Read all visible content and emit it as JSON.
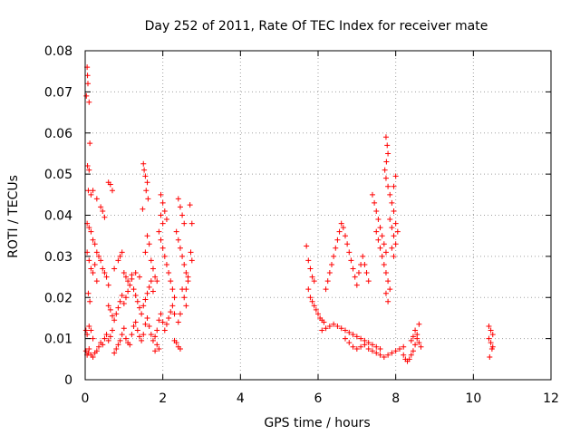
{
  "chart_data": {
    "type": "scatter",
    "title": "Day 252 of 2011, Rate Of TEC Index for receiver mate",
    "xlabel": "GPS time / hours",
    "ylabel": "ROTI / TECUs",
    "xlim": [
      0,
      12
    ],
    "ylim": [
      0,
      0.08
    ],
    "xticks": [
      0,
      2,
      4,
      6,
      8,
      10,
      12
    ],
    "yticks": [
      0,
      0.01,
      0.02,
      0.03,
      0.04,
      0.05,
      0.06,
      0.07,
      0.08
    ],
    "xtick_labels": [
      "0",
      "2",
      "4",
      "6",
      "8",
      "10",
      "12"
    ],
    "ytick_labels": [
      "0",
      "0.01",
      "0.02",
      "0.03",
      "0.04",
      "0.05",
      "0.06",
      "0.07",
      "0.08"
    ],
    "grid": true,
    "marker": "+",
    "color": "#ff0000",
    "points": [
      [
        0.03,
        0.069
      ],
      [
        0.05,
        0.076
      ],
      [
        0.06,
        0.074
      ],
      [
        0.07,
        0.072
      ],
      [
        0.1,
        0.0675
      ],
      [
        0.12,
        0.0575
      ],
      [
        0.06,
        0.052
      ],
      [
        0.1,
        0.051
      ],
      [
        0.08,
        0.046
      ],
      [
        0.15,
        0.045
      ],
      [
        0.2,
        0.046
      ],
      [
        0.3,
        0.044
      ],
      [
        0.4,
        0.042
      ],
      [
        0.45,
        0.041
      ],
      [
        0.5,
        0.0395
      ],
      [
        0.05,
        0.038
      ],
      [
        0.1,
        0.037
      ],
      [
        0.15,
        0.036
      ],
      [
        0.2,
        0.034
      ],
      [
        0.25,
        0.033
      ],
      [
        0.3,
        0.031
      ],
      [
        0.35,
        0.03
      ],
      [
        0.4,
        0.029
      ],
      [
        0.45,
        0.027
      ],
      [
        0.5,
        0.026
      ],
      [
        0.55,
        0.025
      ],
      [
        0.6,
        0.023
      ],
      [
        0.05,
        0.031
      ],
      [
        0.1,
        0.029
      ],
      [
        0.15,
        0.027
      ],
      [
        0.2,
        0.026
      ],
      [
        0.25,
        0.028
      ],
      [
        0.3,
        0.024
      ],
      [
        0.08,
        0.021
      ],
      [
        0.12,
        0.019
      ],
      [
        0.02,
        0.012
      ],
      [
        0.05,
        0.011
      ],
      [
        0.1,
        0.013
      ],
      [
        0.15,
        0.012
      ],
      [
        0.2,
        0.01
      ],
      [
        0.02,
        0.007
      ],
      [
        0.05,
        0.006
      ],
      [
        0.08,
        0.0065
      ],
      [
        0.1,
        0.0075
      ],
      [
        0.15,
        0.006
      ],
      [
        0.2,
        0.0055
      ],
      [
        0.25,
        0.0065
      ],
      [
        0.3,
        0.007
      ],
      [
        0.35,
        0.008
      ],
      [
        0.4,
        0.009
      ],
      [
        0.45,
        0.0085
      ],
      [
        0.5,
        0.01
      ],
      [
        0.55,
        0.011
      ],
      [
        0.6,
        0.0095
      ],
      [
        0.65,
        0.0105
      ],
      [
        0.7,
        0.012
      ],
      [
        0.75,
        0.0065
      ],
      [
        0.8,
        0.0075
      ],
      [
        0.85,
        0.0085
      ],
      [
        0.9,
        0.0095
      ],
      [
        0.95,
        0.011
      ],
      [
        1.0,
        0.0125
      ],
      [
        1.05,
        0.01
      ],
      [
        1.1,
        0.009
      ],
      [
        1.15,
        0.0085
      ],
      [
        1.2,
        0.011
      ],
      [
        1.25,
        0.013
      ],
      [
        1.3,
        0.014
      ],
      [
        1.35,
        0.012
      ],
      [
        1.4,
        0.0105
      ],
      [
        1.45,
        0.0095
      ],
      [
        1.5,
        0.011
      ],
      [
        1.55,
        0.0135
      ],
      [
        1.6,
        0.015
      ],
      [
        1.65,
        0.013
      ],
      [
        1.7,
        0.011
      ],
      [
        1.75,
        0.0095
      ],
      [
        1.8,
        0.0105
      ],
      [
        1.85,
        0.012
      ],
      [
        1.9,
        0.0145
      ],
      [
        1.95,
        0.016
      ],
      [
        2.0,
        0.014
      ],
      [
        2.05,
        0.012
      ],
      [
        2.1,
        0.0135
      ],
      [
        2.15,
        0.015
      ],
      [
        2.2,
        0.0165
      ],
      [
        2.25,
        0.018
      ],
      [
        2.3,
        0.016
      ],
      [
        0.6,
        0.018
      ],
      [
        0.65,
        0.017
      ],
      [
        0.7,
        0.0155
      ],
      [
        0.75,
        0.0145
      ],
      [
        0.8,
        0.016
      ],
      [
        0.85,
        0.0175
      ],
      [
        0.9,
        0.019
      ],
      [
        0.95,
        0.0205
      ],
      [
        1.0,
        0.0185
      ],
      [
        1.05,
        0.02
      ],
      [
        1.1,
        0.0215
      ],
      [
        1.15,
        0.023
      ],
      [
        1.2,
        0.0245
      ],
      [
        1.25,
        0.022
      ],
      [
        1.3,
        0.0205
      ],
      [
        1.35,
        0.019
      ],
      [
        1.4,
        0.0175
      ],
      [
        1.45,
        0.016
      ],
      [
        1.5,
        0.018
      ],
      [
        1.55,
        0.0195
      ],
      [
        1.6,
        0.021
      ],
      [
        1.65,
        0.0225
      ],
      [
        1.7,
        0.024
      ],
      [
        1.75,
        0.0215
      ],
      [
        0.6,
        0.048
      ],
      [
        0.65,
        0.0475
      ],
      [
        0.7,
        0.046
      ],
      [
        0.9,
        0.03
      ],
      [
        0.95,
        0.031
      ],
      [
        0.85,
        0.029
      ],
      [
        0.75,
        0.027
      ],
      [
        1.0,
        0.026
      ],
      [
        1.05,
        0.025
      ],
      [
        1.1,
        0.024
      ],
      [
        1.2,
        0.0255
      ],
      [
        1.3,
        0.026
      ],
      [
        1.4,
        0.025
      ],
      [
        1.5,
        0.0525
      ],
      [
        1.52,
        0.051
      ],
      [
        1.55,
        0.0495
      ],
      [
        1.6,
        0.048
      ],
      [
        1.57,
        0.046
      ],
      [
        1.62,
        0.044
      ],
      [
        1.48,
        0.0415
      ],
      [
        1.6,
        0.035
      ],
      [
        1.65,
        0.033
      ],
      [
        1.55,
        0.031
      ],
      [
        1.7,
        0.029
      ],
      [
        1.75,
        0.027
      ],
      [
        1.8,
        0.025
      ],
      [
        1.85,
        0.024
      ],
      [
        1.95,
        0.045
      ],
      [
        2.0,
        0.043
      ],
      [
        2.05,
        0.041
      ],
      [
        2.1,
        0.039
      ],
      [
        1.95,
        0.04
      ],
      [
        2.0,
        0.038
      ],
      [
        1.9,
        0.036
      ],
      [
        1.95,
        0.034
      ],
      [
        2.0,
        0.032
      ],
      [
        2.05,
        0.03
      ],
      [
        2.1,
        0.028
      ],
      [
        2.15,
        0.026
      ],
      [
        2.2,
        0.024
      ],
      [
        2.25,
        0.022
      ],
      [
        2.3,
        0.02
      ],
      [
        2.4,
        0.044
      ],
      [
        2.45,
        0.042
      ],
      [
        2.5,
        0.04
      ],
      [
        2.55,
        0.038
      ],
      [
        2.35,
        0.036
      ],
      [
        2.4,
        0.034
      ],
      [
        2.45,
        0.032
      ],
      [
        2.5,
        0.03
      ],
      [
        2.55,
        0.028
      ],
      [
        2.6,
        0.026
      ],
      [
        2.65,
        0.024
      ],
      [
        2.5,
        0.022
      ],
      [
        2.55,
        0.02
      ],
      [
        2.6,
        0.018
      ],
      [
        2.45,
        0.016
      ],
      [
        2.4,
        0.014
      ],
      [
        2.7,
        0.0425
      ],
      [
        2.75,
        0.038
      ],
      [
        2.72,
        0.031
      ],
      [
        2.75,
        0.029
      ],
      [
        2.65,
        0.025
      ],
      [
        2.6,
        0.022
      ],
      [
        1.8,
        0.007
      ],
      [
        1.85,
        0.0085
      ],
      [
        1.9,
        0.0075
      ],
      [
        2.35,
        0.009
      ],
      [
        2.4,
        0.008
      ],
      [
        2.45,
        0.0075
      ],
      [
        2.3,
        0.0095
      ],
      [
        5.7,
        0.0325
      ],
      [
        5.75,
        0.029
      ],
      [
        5.8,
        0.027
      ],
      [
        5.85,
        0.025
      ],
      [
        5.9,
        0.024
      ],
      [
        5.75,
        0.022
      ],
      [
        5.8,
        0.02
      ],
      [
        5.85,
        0.019
      ],
      [
        5.9,
        0.018
      ],
      [
        5.95,
        0.017
      ],
      [
        6.0,
        0.016
      ],
      [
        6.05,
        0.015
      ],
      [
        6.1,
        0.0145
      ],
      [
        6.15,
        0.014
      ],
      [
        6.2,
        0.022
      ],
      [
        6.25,
        0.024
      ],
      [
        6.3,
        0.026
      ],
      [
        6.35,
        0.028
      ],
      [
        6.4,
        0.03
      ],
      [
        6.45,
        0.032
      ],
      [
        6.5,
        0.034
      ],
      [
        6.55,
        0.036
      ],
      [
        6.6,
        0.038
      ],
      [
        6.65,
        0.037
      ],
      [
        6.7,
        0.035
      ],
      [
        6.75,
        0.033
      ],
      [
        6.8,
        0.031
      ],
      [
        6.85,
        0.029
      ],
      [
        6.9,
        0.027
      ],
      [
        6.95,
        0.025
      ],
      [
        7.0,
        0.023
      ],
      [
        7.05,
        0.026
      ],
      [
        7.1,
        0.028
      ],
      [
        7.15,
        0.03
      ],
      [
        7.2,
        0.028
      ],
      [
        7.25,
        0.026
      ],
      [
        7.3,
        0.024
      ],
      [
        6.1,
        0.012
      ],
      [
        6.2,
        0.0125
      ],
      [
        6.3,
        0.013
      ],
      [
        6.4,
        0.0135
      ],
      [
        6.5,
        0.013
      ],
      [
        6.6,
        0.0125
      ],
      [
        6.7,
        0.012
      ],
      [
        6.8,
        0.0115
      ],
      [
        6.9,
        0.011
      ],
      [
        7.0,
        0.0105
      ],
      [
        7.1,
        0.01
      ],
      [
        7.2,
        0.0095
      ],
      [
        7.3,
        0.009
      ],
      [
        7.4,
        0.0085
      ],
      [
        7.5,
        0.008
      ],
      [
        7.6,
        0.0075
      ],
      [
        6.7,
        0.01
      ],
      [
        6.8,
        0.009
      ],
      [
        6.9,
        0.008
      ],
      [
        7.0,
        0.0075
      ],
      [
        7.1,
        0.008
      ],
      [
        7.2,
        0.0085
      ],
      [
        7.3,
        0.0075
      ],
      [
        7.4,
        0.007
      ],
      [
        7.5,
        0.0065
      ],
      [
        7.6,
        0.006
      ],
      [
        7.7,
        0.0055
      ],
      [
        7.8,
        0.006
      ],
      [
        7.9,
        0.0065
      ],
      [
        8.0,
        0.007
      ],
      [
        8.1,
        0.0075
      ],
      [
        8.2,
        0.008
      ],
      [
        7.4,
        0.045
      ],
      [
        7.45,
        0.043
      ],
      [
        7.5,
        0.041
      ],
      [
        7.55,
        0.039
      ],
      [
        7.6,
        0.037
      ],
      [
        7.65,
        0.035
      ],
      [
        7.7,
        0.033
      ],
      [
        7.75,
        0.031
      ],
      [
        7.5,
        0.036
      ],
      [
        7.55,
        0.034
      ],
      [
        7.6,
        0.032
      ],
      [
        7.65,
        0.03
      ],
      [
        7.7,
        0.028
      ],
      [
        7.75,
        0.026
      ],
      [
        7.8,
        0.024
      ],
      [
        7.75,
        0.059
      ],
      [
        7.78,
        0.057
      ],
      [
        7.8,
        0.055
      ],
      [
        7.76,
        0.053
      ],
      [
        7.72,
        0.051
      ],
      [
        7.75,
        0.049
      ],
      [
        7.8,
        0.047
      ],
      [
        7.85,
        0.045
      ],
      [
        7.9,
        0.043
      ],
      [
        7.95,
        0.041
      ],
      [
        7.85,
        0.039
      ],
      [
        7.9,
        0.037
      ],
      [
        7.95,
        0.035
      ],
      [
        8.0,
        0.033
      ],
      [
        7.9,
        0.032
      ],
      [
        7.95,
        0.03
      ],
      [
        8.0,
        0.0495
      ],
      [
        7.95,
        0.047
      ],
      [
        8.0,
        0.038
      ],
      [
        8.05,
        0.036
      ],
      [
        7.85,
        0.022
      ],
      [
        7.8,
        0.019
      ],
      [
        7.75,
        0.021
      ],
      [
        8.2,
        0.006
      ],
      [
        8.25,
        0.005
      ],
      [
        8.3,
        0.0045
      ],
      [
        8.35,
        0.005
      ],
      [
        8.4,
        0.006
      ],
      [
        8.45,
        0.007
      ],
      [
        8.5,
        0.0085
      ],
      [
        8.55,
        0.01
      ],
      [
        8.5,
        0.012
      ],
      [
        8.55,
        0.011
      ],
      [
        8.6,
        0.009
      ],
      [
        8.65,
        0.008
      ],
      [
        8.4,
        0.0095
      ],
      [
        8.45,
        0.0105
      ],
      [
        8.6,
        0.0135
      ],
      [
        10.4,
        0.013
      ],
      [
        10.45,
        0.012
      ],
      [
        10.5,
        0.011
      ],
      [
        10.4,
        0.01
      ],
      [
        10.45,
        0.009
      ],
      [
        10.5,
        0.008
      ],
      [
        10.42,
        0.0055
      ],
      [
        10.48,
        0.0075
      ]
    ]
  }
}
